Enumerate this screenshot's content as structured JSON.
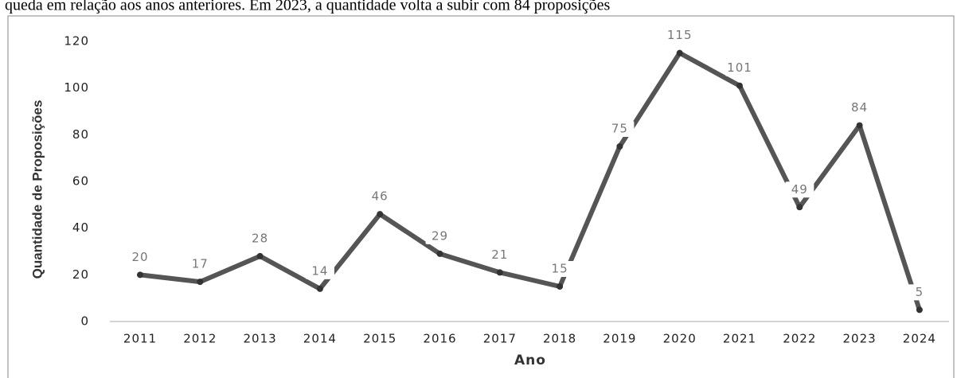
{
  "caption": "queda em relação aos anos anteriores. Em 2023, a quantidade volta a subir com 84 proposições",
  "chart_data": {
    "type": "line",
    "x_label": "Ano",
    "y_label": "Quantidade de Proposições",
    "categories": [
      "2011",
      "2012",
      "2013",
      "2014",
      "2015",
      "2016",
      "2017",
      "2018",
      "2019",
      "2020",
      "2021",
      "2022",
      "2023",
      "2024"
    ],
    "values": [
      20,
      17,
      28,
      14,
      46,
      29,
      21,
      15,
      75,
      115,
      101,
      49,
      84,
      5
    ],
    "color": "#555555",
    "ylim": [
      0,
      120
    ],
    "yticks": [
      0,
      20,
      40,
      60,
      80,
      100,
      120
    ],
    "grid": false
  }
}
